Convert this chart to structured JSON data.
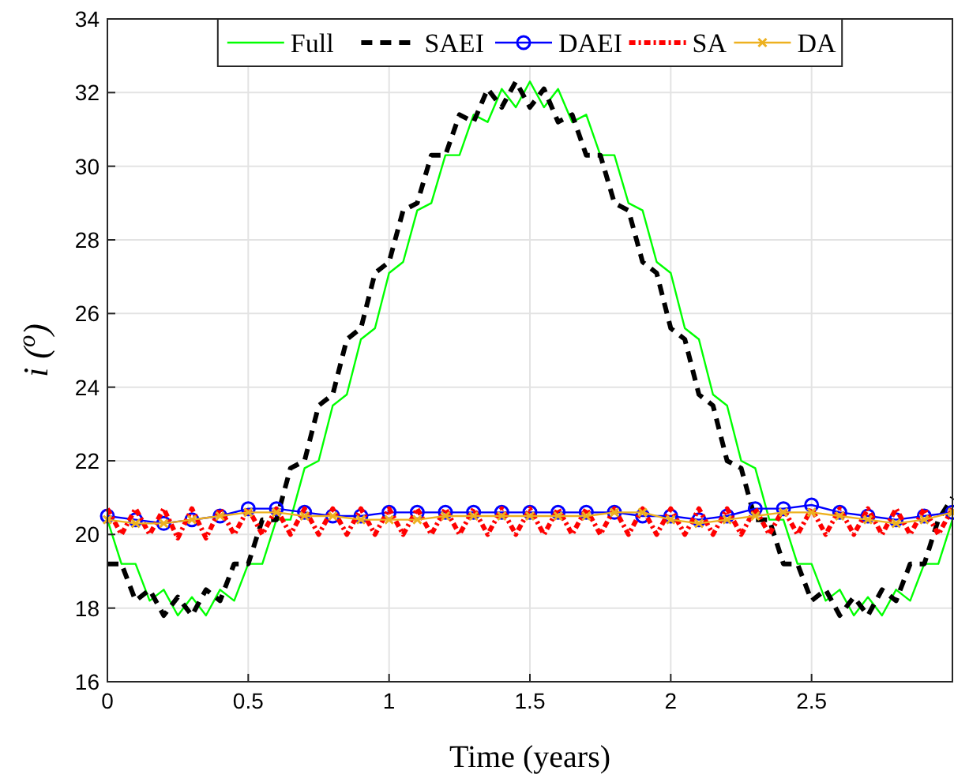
{
  "chart_data": {
    "type": "line",
    "xlabel": "Time (years)",
    "ylabel": "i ($^{o}$)",
    "xlim": [
      0,
      3
    ],
    "ylim": [
      16,
      34
    ],
    "xticks": [
      0,
      0.5,
      1,
      1.5,
      2,
      2.5
    ],
    "yticks": [
      16,
      18,
      20,
      22,
      24,
      26,
      28,
      30,
      32,
      34
    ],
    "grid": true,
    "legend": "top",
    "x": [
      0,
      0.05,
      0.1,
      0.15,
      0.2,
      0.25,
      0.3,
      0.35,
      0.4,
      0.45,
      0.5,
      0.55,
      0.6,
      0.65,
      0.7,
      0.75,
      0.8,
      0.85,
      0.9,
      0.95,
      1,
      1.05,
      1.1,
      1.15,
      1.2,
      1.25,
      1.3,
      1.35,
      1.4,
      1.45,
      1.5,
      1.55,
      1.6,
      1.65,
      1.7,
      1.75,
      1.8,
      1.85,
      1.9,
      1.95,
      2,
      2.05,
      2.1,
      2.15,
      2.2,
      2.25,
      2.3,
      2.35,
      2.4,
      2.45,
      2.5,
      2.55,
      2.6,
      2.65,
      2.7,
      2.75,
      2.8,
      2.85,
      2.9,
      2.95,
      3
    ],
    "series": [
      {
        "name": "Full",
        "color": "#00ff00",
        "line_style": "solid",
        "marker": "none",
        "values": [
          20.4,
          19.2,
          19.2,
          18.2,
          18.5,
          17.8,
          18.3,
          17.8,
          18.5,
          18.2,
          19.2,
          19.2,
          20.4,
          20.4,
          21.8,
          22.0,
          23.5,
          23.8,
          25.3,
          25.6,
          27.1,
          27.4,
          28.8,
          29.0,
          30.3,
          30.3,
          31.4,
          31.2,
          32.1,
          31.6,
          32.3,
          31.6,
          32.1,
          31.2,
          31.4,
          30.3,
          30.3,
          29.0,
          28.8,
          27.4,
          27.1,
          25.6,
          25.3,
          23.8,
          23.5,
          22.0,
          21.8,
          20.4,
          20.4,
          19.2,
          19.2,
          18.2,
          18.5,
          17.8,
          18.3,
          17.8,
          18.5,
          18.2,
          19.2,
          19.2,
          20.4
        ]
      },
      {
        "name": "SAEI",
        "color": "#000000",
        "line_style": "dashed",
        "marker": "none",
        "values": [
          19.2,
          19.2,
          18.2,
          18.5,
          17.8,
          18.3,
          17.8,
          18.5,
          18.2,
          19.2,
          19.2,
          20.4,
          20.4,
          21.8,
          22.0,
          23.5,
          23.8,
          25.3,
          25.6,
          27.1,
          27.4,
          28.8,
          29.0,
          30.3,
          30.3,
          31.4,
          31.2,
          32.1,
          31.6,
          32.3,
          31.6,
          32.1,
          31.2,
          31.4,
          30.3,
          30.3,
          29.0,
          28.8,
          27.4,
          27.1,
          25.6,
          25.3,
          23.8,
          23.5,
          22.0,
          21.8,
          20.4,
          20.4,
          19.2,
          19.2,
          18.2,
          18.5,
          17.8,
          18.3,
          17.8,
          18.5,
          18.2,
          19.2,
          19.2,
          20.4,
          21.0
        ]
      },
      {
        "name": "DAEI",
        "color": "#0000ff",
        "line_style": "solid",
        "marker": "circle",
        "x": [
          0,
          0.1,
          0.2,
          0.3,
          0.4,
          0.5,
          0.6,
          0.7,
          0.8,
          0.9,
          1,
          1.1,
          1.2,
          1.3,
          1.4,
          1.5,
          1.6,
          1.7,
          1.8,
          1.9,
          2,
          2.1,
          2.2,
          2.3,
          2.4,
          2.5,
          2.6,
          2.7,
          2.8,
          2.9,
          3
        ],
        "values": [
          20.5,
          20.4,
          20.3,
          20.4,
          20.5,
          20.7,
          20.7,
          20.6,
          20.5,
          20.5,
          20.6,
          20.6,
          20.6,
          20.6,
          20.6,
          20.6,
          20.6,
          20.6,
          20.6,
          20.5,
          20.5,
          20.4,
          20.5,
          20.7,
          20.7,
          20.8,
          20.6,
          20.5,
          20.4,
          20.5,
          20.6
        ]
      },
      {
        "name": "SA",
        "color": "#ff0000",
        "line_style": "dotted",
        "marker": "none",
        "values": [
          20.7,
          20.0,
          20.7,
          20.0,
          20.7,
          19.9,
          20.7,
          19.9,
          20.7,
          20.0,
          20.7,
          20.0,
          20.7,
          20.0,
          20.7,
          20.0,
          20.7,
          20.0,
          20.7,
          20.0,
          20.7,
          20.0,
          20.7,
          20.0,
          20.7,
          20.0,
          20.7,
          20.0,
          20.7,
          20.0,
          20.7,
          20.0,
          20.7,
          20.0,
          20.7,
          20.0,
          20.7,
          20.0,
          20.7,
          20.0,
          20.7,
          20.0,
          20.7,
          20.0,
          20.7,
          20.0,
          20.7,
          20.0,
          20.7,
          20.0,
          20.7,
          20.0,
          20.7,
          20.0,
          20.7,
          20.0,
          20.7,
          20.0,
          20.7,
          20.0,
          20.7
        ]
      },
      {
        "name": "DA",
        "color": "#edb120",
        "line_style": "solid",
        "marker": "cross",
        "x": [
          0,
          0.1,
          0.2,
          0.3,
          0.4,
          0.5,
          0.6,
          0.7,
          0.8,
          0.9,
          1,
          1.1,
          1.2,
          1.3,
          1.4,
          1.5,
          1.6,
          1.7,
          1.8,
          1.9,
          2,
          2.1,
          2.2,
          2.3,
          2.4,
          2.5,
          2.6,
          2.7,
          2.8,
          2.9,
          3
        ],
        "values": [
          20.4,
          20.3,
          20.3,
          20.4,
          20.5,
          20.6,
          20.6,
          20.5,
          20.5,
          20.4,
          20.4,
          20.4,
          20.5,
          20.5,
          20.5,
          20.5,
          20.5,
          20.5,
          20.6,
          20.6,
          20.4,
          20.3,
          20.4,
          20.5,
          20.6,
          20.6,
          20.5,
          20.4,
          20.3,
          20.4,
          20.6
        ]
      }
    ]
  }
}
